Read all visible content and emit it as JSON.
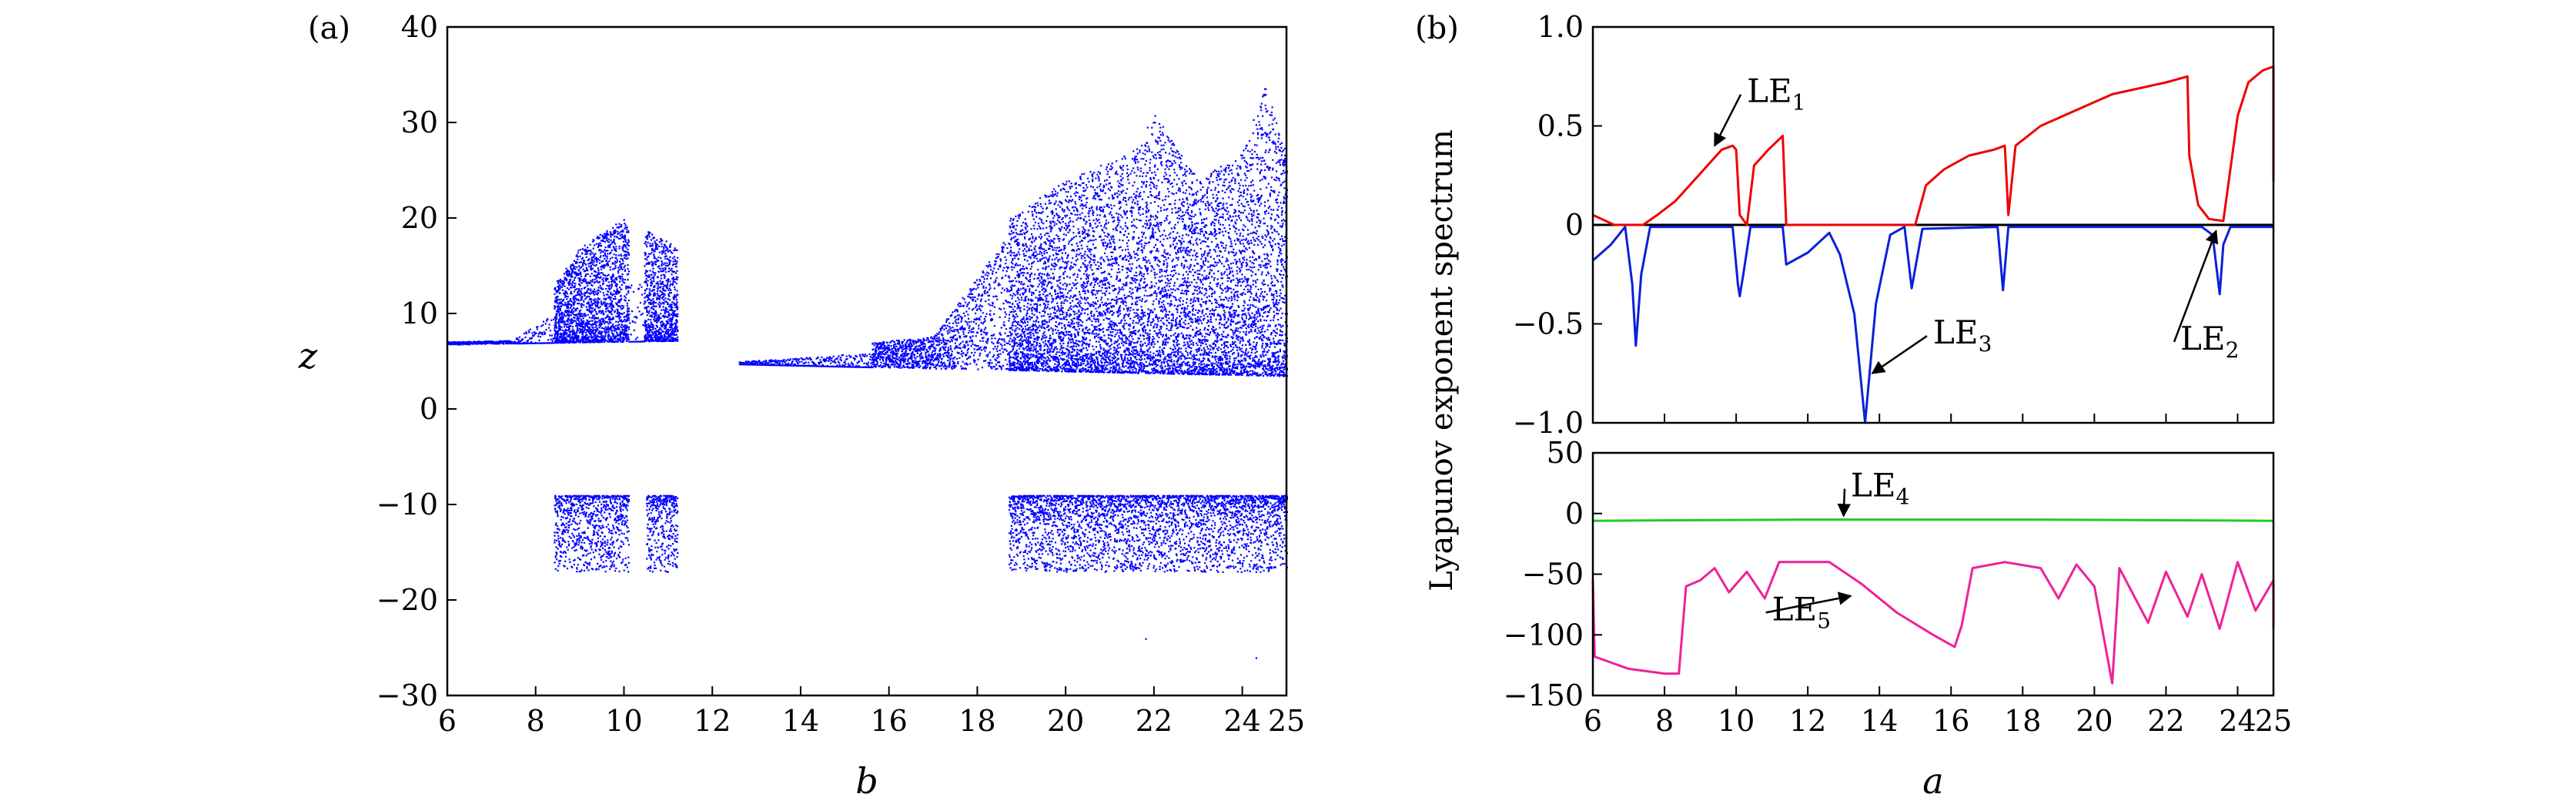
{
  "colors": {
    "scatter": "#0000ff",
    "LE1": "#ee0000",
    "LE2": "#000000",
    "LE3": "#0a20d8",
    "LE4": "#22cc22",
    "LE5": "#ee2299",
    "axis": "#000000"
  },
  "chart_data": [
    {
      "type": "scatter",
      "panel_label": "(a)",
      "xlabel": "b",
      "ylabel": "z",
      "xlim": [
        6,
        25
      ],
      "ylim": [
        -30,
        40
      ],
      "xticks": [
        6,
        8,
        10,
        12,
        14,
        16,
        18,
        20,
        22,
        24,
        25
      ],
      "xtick_labels": [
        "6",
        "8",
        "10",
        "12",
        "14",
        "16",
        "18",
        "20",
        "22",
        "24",
        "25"
      ],
      "yticks": [
        -30,
        -20,
        -10,
        0,
        10,
        20,
        30,
        40
      ],
      "ytick_labels": [
        "−30",
        "−20",
        "−10",
        "0",
        "10",
        "20",
        "30",
        "40"
      ],
      "series": [
        {
          "description_type": "bifurcation diagram",
          "envelope_upper": [
            {
              "x": 6.0,
              "y": 7.0
            },
            {
              "x": 7.5,
              "y": 8.0
            },
            {
              "x": 8.4,
              "y": 13
            },
            {
              "x": 9.0,
              "y": 17
            },
            {
              "x": 10.0,
              "y": 20
            },
            {
              "x": 11.2,
              "y": 17
            },
            {
              "x": 12.5,
              "y": 5.2
            },
            {
              "x": 15.0,
              "y": 7.0
            },
            {
              "x": 17.0,
              "y": 8.0
            },
            {
              "x": 18.7,
              "y": 20
            },
            {
              "x": 20.0,
              "y": 24
            },
            {
              "x": 21.5,
              "y": 27
            },
            {
              "x": 22.0,
              "y": 31
            },
            {
              "x": 23.0,
              "y": 24
            },
            {
              "x": 24.0,
              "y": 27
            },
            {
              "x": 24.5,
              "y": 34
            },
            {
              "x": 25.0,
              "y": 27
            }
          ],
          "envelope_lower_positive": [
            {
              "x": 6.0,
              "y": 6.8
            },
            {
              "x": 8.4,
              "y": 7.0
            },
            {
              "x": 11.2,
              "y": 7.2
            },
            {
              "x": 11.2,
              "y": 4.9
            },
            {
              "x": 15.0,
              "y": 4.5
            },
            {
              "x": 20.0,
              "y": 4.0
            },
            {
              "x": 25.0,
              "y": 3.5
            }
          ],
          "negative_band_ranges_x": [
            [
              8.4,
              10.1
            ],
            [
              10.5,
              11.2
            ],
            [
              18.7,
              25.0
            ]
          ],
          "negative_band_y": [
            -9,
            -17
          ],
          "negative_outliers": [
            {
              "x": 21.8,
              "y": -24
            },
            {
              "x": 24.3,
              "y": -26
            }
          ]
        }
      ]
    },
    {
      "type": "line",
      "panel_label": "(b)",
      "xlabel": "a",
      "ylabel": "Lyapunov exponent spectrum",
      "xlim": [
        6,
        25
      ],
      "xticks": [
        6,
        8,
        10,
        12,
        14,
        16,
        18,
        20,
        22,
        24,
        25
      ],
      "xtick_labels": [
        "6",
        "8",
        "10",
        "12",
        "14",
        "16",
        "18",
        "20",
        "22",
        "24",
        "25"
      ],
      "subplots": [
        {
          "ylim": [
            -1.0,
            1.0
          ],
          "yticks": [
            -1.0,
            -0.5,
            0,
            0.5,
            1.0
          ],
          "ytick_labels": [
            "−1.0",
            "−0.5",
            "0",
            "0.5",
            "1.0"
          ],
          "series": [
            {
              "name": "LE1",
              "label": "LE",
              "subscript": "1",
              "points": [
                [
                  6.0,
                  0.05
                ],
                [
                  6.6,
                  0.0
                ],
                [
                  7.4,
                  0.0
                ],
                [
                  7.8,
                  0.05
                ],
                [
                  8.3,
                  0.12
                ],
                [
                  8.8,
                  0.22
                ],
                [
                  9.3,
                  0.32
                ],
                [
                  9.6,
                  0.38
                ],
                [
                  9.9,
                  0.4
                ],
                [
                  10.0,
                  0.38
                ],
                [
                  10.1,
                  0.05
                ],
                [
                  10.3,
                  0.0
                ],
                [
                  10.5,
                  0.3
                ],
                [
                  10.9,
                  0.38
                ],
                [
                  11.3,
                  0.45
                ],
                [
                  11.4,
                  0.0
                ],
                [
                  12.0,
                  0.0
                ],
                [
                  13.0,
                  0.0
                ],
                [
                  14.0,
                  0.0
                ],
                [
                  15.0,
                  0.0
                ],
                [
                  15.3,
                  0.2
                ],
                [
                  15.8,
                  0.28
                ],
                [
                  16.5,
                  0.35
                ],
                [
                  17.2,
                  0.38
                ],
                [
                  17.5,
                  0.4
                ],
                [
                  17.6,
                  0.05
                ],
                [
                  17.8,
                  0.4
                ],
                [
                  18.5,
                  0.5
                ],
                [
                  19.5,
                  0.58
                ],
                [
                  20.5,
                  0.66
                ],
                [
                  21.5,
                  0.7
                ],
                [
                  22.0,
                  0.72
                ],
                [
                  22.6,
                  0.75
                ],
                [
                  22.65,
                  0.35
                ],
                [
                  22.9,
                  0.1
                ],
                [
                  23.2,
                  0.03
                ],
                [
                  23.6,
                  0.02
                ],
                [
                  24.0,
                  0.55
                ],
                [
                  24.3,
                  0.72
                ],
                [
                  24.7,
                  0.78
                ],
                [
                  25.0,
                  0.8
                ],
                [
                  25.0,
                  0.22
                ]
              ]
            },
            {
              "name": "LE2",
              "label": "LE",
              "subscript": "2",
              "points": [
                [
                  6.0,
                  0.0
                ],
                [
                  25.0,
                  0.0
                ]
              ]
            },
            {
              "name": "LE3",
              "label": "LE",
              "subscript": "3",
              "points": [
                [
                  6.0,
                  -0.18
                ],
                [
                  6.5,
                  -0.1
                ],
                [
                  6.9,
                  -0.01
                ],
                [
                  7.1,
                  -0.3
                ],
                [
                  7.2,
                  -0.61
                ],
                [
                  7.35,
                  -0.25
                ],
                [
                  7.6,
                  -0.01
                ],
                [
                  9.9,
                  -0.01
                ],
                [
                  10.05,
                  -0.3
                ],
                [
                  10.1,
                  -0.36
                ],
                [
                  10.2,
                  -0.25
                ],
                [
                  10.4,
                  -0.01
                ],
                [
                  11.3,
                  -0.01
                ],
                [
                  11.4,
                  -0.2
                ],
                [
                  12.0,
                  -0.14
                ],
                [
                  12.6,
                  -0.04
                ],
                [
                  12.9,
                  -0.15
                ],
                [
                  13.3,
                  -0.45
                ],
                [
                  13.6,
                  -1.0
                ],
                [
                  13.9,
                  -0.4
                ],
                [
                  14.3,
                  -0.05
                ],
                [
                  14.7,
                  -0.01
                ],
                [
                  14.9,
                  -0.32
                ],
                [
                  15.2,
                  -0.02
                ],
                [
                  17.3,
                  -0.01
                ],
                [
                  17.45,
                  -0.33
                ],
                [
                  17.6,
                  -0.01
                ],
                [
                  23.0,
                  -0.01
                ],
                [
                  23.3,
                  -0.05
                ],
                [
                  23.5,
                  -0.35
                ],
                [
                  23.6,
                  -0.1
                ],
                [
                  23.8,
                  -0.01
                ],
                [
                  25.0,
                  -0.01
                ]
              ]
            }
          ],
          "annotations": [
            {
              "series": "LE1",
              "label": "LE",
              "subscript": "1",
              "text_at": [
                10.3,
                0.62
              ],
              "arrow_to": [
                9.4,
                0.4
              ]
            },
            {
              "series": "LE3",
              "label": "LE",
              "subscript": "3",
              "text_at": [
                15.5,
                -0.6
              ],
              "arrow_to": [
                13.8,
                -0.75
              ]
            },
            {
              "series": "LE2",
              "label": "LE",
              "subscript": "2",
              "text_at": [
                22.4,
                -0.63
              ],
              "arrow_to": [
                23.4,
                -0.03
              ]
            }
          ]
        },
        {
          "ylim": [
            -150,
            50
          ],
          "yticks": [
            -150,
            -100,
            -50,
            0,
            50
          ],
          "ytick_labels": [
            "−150",
            "−100",
            "−50",
            "0",
            "50"
          ],
          "series": [
            {
              "name": "LE4",
              "label": "LE",
              "subscript": "4",
              "points": [
                [
                  6.0,
                  -6
                ],
                [
                  12.0,
                  -5
                ],
                [
                  18.0,
                  -5
                ],
                [
                  25.0,
                  -6
                ]
              ]
            },
            {
              "name": "LE5",
              "label": "LE",
              "subscript": "5",
              "points": [
                [
                  6.0,
                  -55
                ],
                [
                  6.05,
                  -118
                ],
                [
                  7.0,
                  -128
                ],
                [
                  8.0,
                  -132
                ],
                [
                  8.4,
                  -132
                ],
                [
                  8.6,
                  -60
                ],
                [
                  9.0,
                  -55
                ],
                [
                  9.4,
                  -45
                ],
                [
                  9.8,
                  -65
                ],
                [
                  10.3,
                  -48
                ],
                [
                  10.8,
                  -70
                ],
                [
                  11.2,
                  -40
                ],
                [
                  12.0,
                  -40
                ],
                [
                  12.6,
                  -40
                ],
                [
                  13.5,
                  -58
                ],
                [
                  14.5,
                  -82
                ],
                [
                  15.5,
                  -100
                ],
                [
                  16.1,
                  -110
                ],
                [
                  16.3,
                  -92
                ],
                [
                  16.6,
                  -45
                ],
                [
                  17.5,
                  -40
                ],
                [
                  18.5,
                  -45
                ],
                [
                  19.0,
                  -70
                ],
                [
                  19.5,
                  -42
                ],
                [
                  20.0,
                  -60
                ],
                [
                  20.5,
                  -140
                ],
                [
                  20.7,
                  -45
                ],
                [
                  21.5,
                  -90
                ],
                [
                  22.0,
                  -48
                ],
                [
                  22.6,
                  -85
                ],
                [
                  23.0,
                  -50
                ],
                [
                  23.5,
                  -95
                ],
                [
                  24.0,
                  -40
                ],
                [
                  24.5,
                  -80
                ],
                [
                  25.0,
                  -55
                ],
                [
                  25.0,
                  -95
                ]
              ]
            }
          ],
          "annotations": [
            {
              "series": "LE4",
              "label": "LE",
              "subscript": "4",
              "text_at": [
                13.2,
                14
              ],
              "arrow_to": [
                13.0,
                -2
              ]
            },
            {
              "series": "LE5",
              "label": "LE",
              "subscript": "5",
              "text_at": [
                11.0,
                -88
              ],
              "arrow_to": [
                13.2,
                -68
              ]
            }
          ]
        }
      ]
    }
  ]
}
